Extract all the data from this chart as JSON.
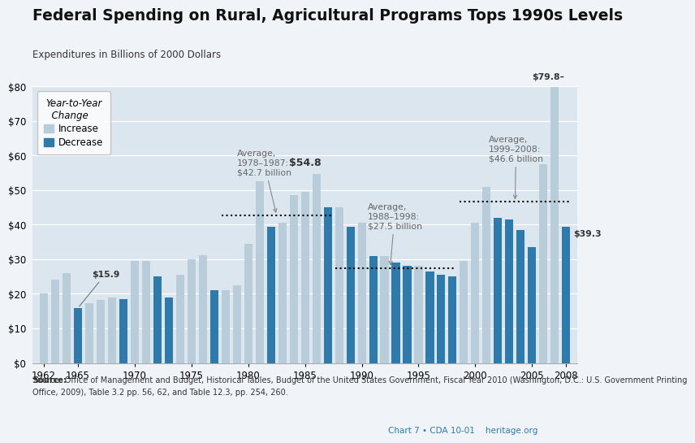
{
  "title": "Federal Spending on Rural, Agricultural Programs Tops 1990s Levels",
  "subtitle": "Expenditures in Billions of 2000 Dollars",
  "years": [
    1962,
    1963,
    1964,
    1965,
    1966,
    1967,
    1968,
    1969,
    1970,
    1971,
    1972,
    1973,
    1974,
    1975,
    1976,
    1977,
    1978,
    1979,
    1980,
    1981,
    1982,
    1983,
    1984,
    1985,
    1986,
    1987,
    1988,
    1989,
    1990,
    1991,
    1992,
    1993,
    1994,
    1995,
    1996,
    1997,
    1998,
    1999,
    2000,
    2001,
    2002,
    2003,
    2004,
    2005,
    2006,
    2007,
    2008
  ],
  "values": [
    20.2,
    24.0,
    26.0,
    15.9,
    17.2,
    18.2,
    19.0,
    18.5,
    29.5,
    29.5,
    25.0,
    19.0,
    25.5,
    30.0,
    31.2,
    21.0,
    21.0,
    22.5,
    34.5,
    52.5,
    39.5,
    40.5,
    48.5,
    49.5,
    54.8,
    45.0,
    45.0,
    39.5,
    40.5,
    31.0,
    31.0,
    29.0,
    28.0,
    28.0,
    26.5,
    25.5,
    25.0,
    29.5,
    40.5,
    51.0,
    42.0,
    41.5,
    38.5,
    33.5,
    57.5,
    79.8,
    39.3
  ],
  "increases": [
    true,
    true,
    true,
    false,
    true,
    true,
    true,
    false,
    true,
    true,
    false,
    false,
    true,
    true,
    true,
    false,
    true,
    true,
    true,
    true,
    false,
    true,
    true,
    true,
    true,
    false,
    true,
    false,
    true,
    false,
    true,
    false,
    false,
    true,
    false,
    false,
    false,
    true,
    true,
    true,
    false,
    false,
    false,
    false,
    true,
    true,
    false
  ],
  "color_increase": "#b8cdd9",
  "color_decrease": "#2e7aab",
  "avg1_y": 42.7,
  "avg2_y": 27.5,
  "avg3_y": 46.6,
  "ylim": [
    0,
    80
  ],
  "yticks": [
    0,
    10,
    20,
    30,
    40,
    50,
    60,
    70,
    80
  ],
  "xtick_years": [
    1962,
    1965,
    1970,
    1975,
    1980,
    1985,
    1990,
    1995,
    2000,
    2005,
    2008
  ],
  "source_text": "Source: Office of Management and Budget, Historical Tables, Budget of the United States Government, Fiscal Year 2010 (Washington, D.C.: U.S. Government Printing\nOffice, 2009), Table 3.2 pp. 56, 62, and Table 12.3, pp. 254, 260.",
  "footer_text": "Chart 7 • CDA 10-01    heritage.org",
  "bg_color": "#eaeff4",
  "plot_bg_color": "#dce6ef",
  "outer_bg_color": "#f0f4f8"
}
